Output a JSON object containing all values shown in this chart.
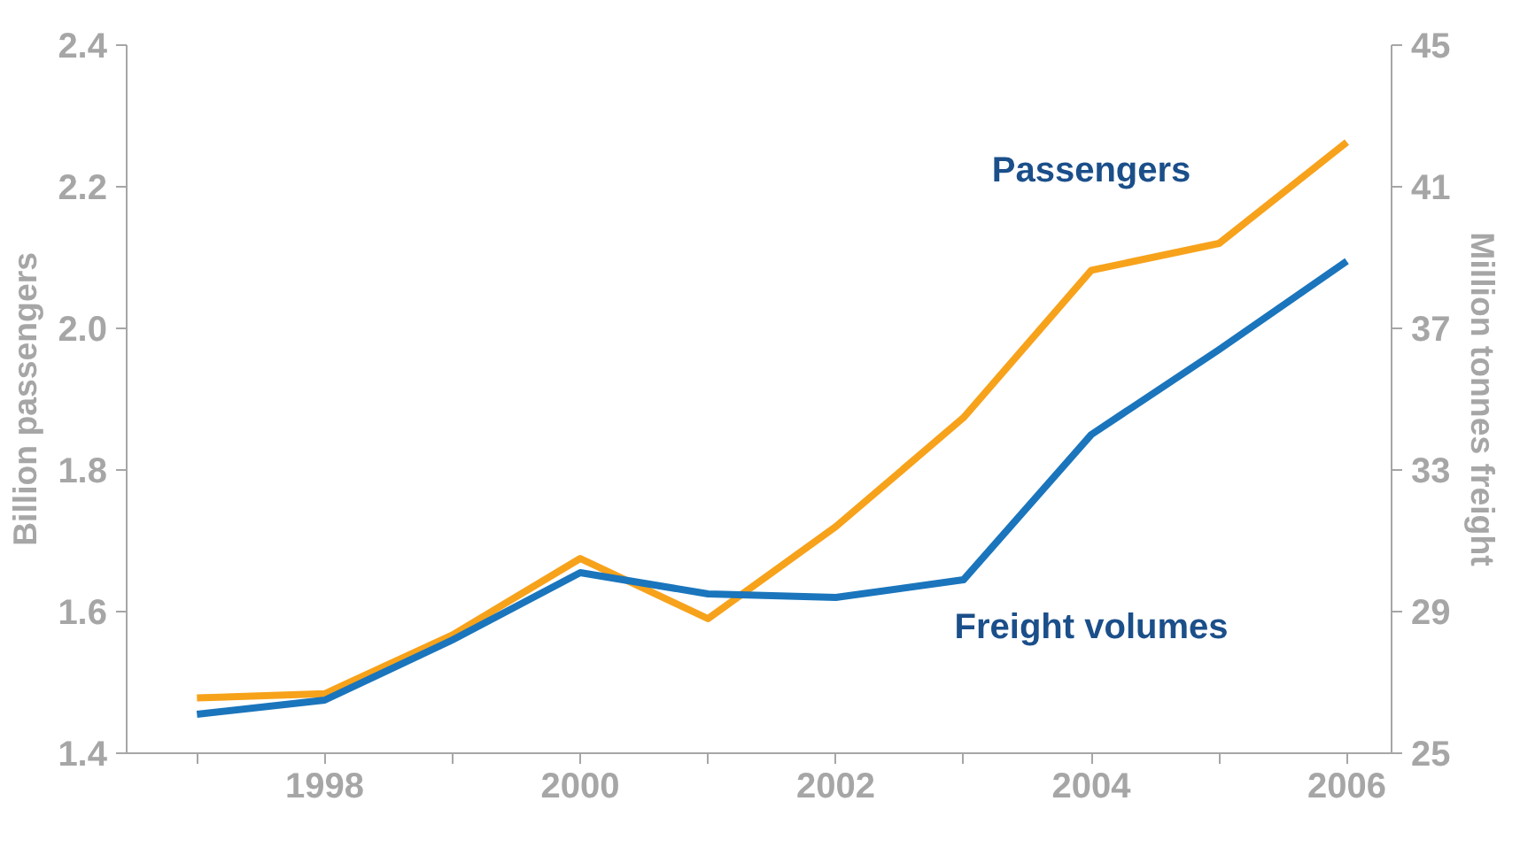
{
  "chart_data": {
    "type": "line",
    "ylabel": "Billion passengers",
    "y2label": "Million tonnes freight",
    "x": [
      1997,
      1998,
      1999,
      2000,
      2001,
      2002,
      2003,
      2004,
      2005,
      2006
    ],
    "xlim": [
      1996.45,
      2006.35
    ],
    "xticks": [
      {
        "value": 1997,
        "label": null
      },
      1998,
      {
        "value": 1999,
        "label": null
      },
      2000,
      {
        "value": 2001,
        "label": null
      },
      2002,
      {
        "value": 2003,
        "label": null
      },
      2004,
      {
        "value": 2005,
        "label": null
      },
      2006
    ],
    "ylim": [
      1.4,
      2.4
    ],
    "yticks": [
      {
        "value": 1.4,
        "label": "1.4"
      },
      {
        "value": 1.6,
        "label": "1.6"
      },
      {
        "value": 1.8,
        "label": "1.8"
      },
      {
        "value": 2.0,
        "label": "2.0"
      },
      {
        "value": 2.2,
        "label": "2.2"
      },
      {
        "value": 2.4,
        "label": "2.4"
      }
    ],
    "y2lim": [
      25,
      45
    ],
    "y2ticks": [
      25,
      29,
      33,
      37,
      41,
      45
    ],
    "grid": false,
    "legend": false,
    "line_style": "solid",
    "marker": "none",
    "series": [
      {
        "name": "Passengers",
        "color": "#f7a21b",
        "values": [
          1.478,
          1.484,
          1.567,
          1.675,
          1.59,
          1.72,
          1.874,
          2.082,
          2.12,
          2.263
        ]
      },
      {
        "name": "Freight volumes",
        "color": "#1a75bc",
        "axis": "y2",
        "values": [
          26.1,
          26.5,
          28.2,
          30.1,
          29.5,
          29.4,
          29.9,
          34.0,
          36.4,
          38.9
        ]
      }
    ]
  }
}
